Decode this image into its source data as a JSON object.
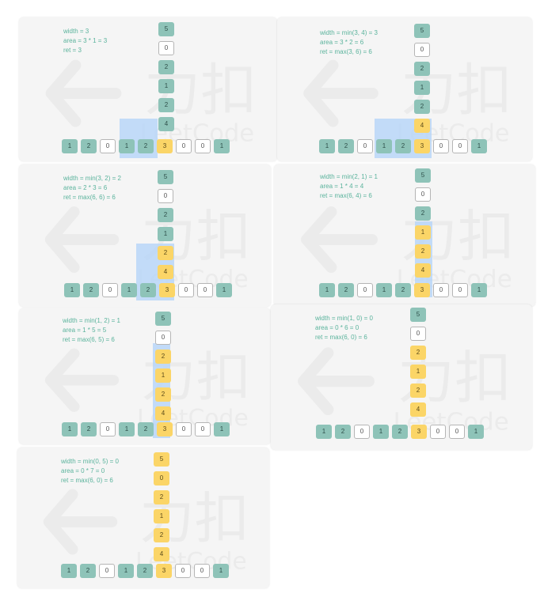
{
  "watermark": {
    "brand": "LeetCode",
    "chars": "力扣"
  },
  "colors": {
    "teal": "#8ec3b8",
    "yellow": "#fbd567",
    "white": "#ffffff",
    "highlight": "#b9d6f8",
    "text": "#5ab39c"
  },
  "bottom_row": [
    "1",
    "2",
    "0",
    "1",
    "2",
    "3",
    "0",
    "0",
    "1"
  ],
  "column": [
    "5",
    "0",
    "2",
    "1",
    "2",
    "4"
  ],
  "panels": [
    {
      "id": "p1",
      "lines": [
        "width = 3",
        "area = 3 * 1 = 3",
        "ret = 3"
      ],
      "col_types": [
        "teal",
        "white",
        "teal",
        "teal",
        "teal",
        "teal"
      ],
      "row_types": [
        "teal",
        "teal",
        "white",
        "teal",
        "teal",
        "yellow",
        "white",
        "white",
        "teal"
      ]
    },
    {
      "id": "p2",
      "lines": [
        "width = min(3, 4) = 3",
        "area = 3 * 2 = 6",
        "ret = max(3, 6) = 6"
      ],
      "col_types": [
        "teal",
        "white",
        "teal",
        "teal",
        "teal",
        "yellow"
      ],
      "row_types": [
        "teal",
        "teal",
        "white",
        "teal",
        "teal",
        "yellow",
        "white",
        "white",
        "teal"
      ]
    },
    {
      "id": "p3",
      "lines": [
        "width = min(3, 2) = 2",
        "area = 2 * 3 = 6",
        "ret = max(6, 6) = 6"
      ],
      "col_types": [
        "teal",
        "white",
        "teal",
        "teal",
        "yellow",
        "yellow"
      ],
      "row_types": [
        "teal",
        "teal",
        "white",
        "teal",
        "teal",
        "yellow",
        "white",
        "white",
        "teal"
      ]
    },
    {
      "id": "p4",
      "lines": [
        "width = min(2, 1) = 1",
        "area = 1 * 4 = 4",
        "ret = max(6, 4) = 6"
      ],
      "col_types": [
        "teal",
        "white",
        "teal",
        "yellow",
        "yellow",
        "yellow"
      ],
      "row_types": [
        "teal",
        "teal",
        "white",
        "teal",
        "teal",
        "yellow",
        "white",
        "white",
        "teal"
      ]
    },
    {
      "id": "p5",
      "lines": [
        "width = min(1, 2) = 1",
        "area = 1 * 5 = 5",
        "ret = max(6, 5) = 6"
      ],
      "col_types": [
        "teal",
        "white",
        "yellow",
        "yellow",
        "yellow",
        "yellow"
      ],
      "row_types": [
        "teal",
        "teal",
        "white",
        "teal",
        "teal",
        "yellow",
        "white",
        "white",
        "teal"
      ]
    },
    {
      "id": "p6",
      "lines": [
        "width = min(1, 0) = 0",
        "area = 0 * 6 = 0",
        "ret = max(6, 0) = 6"
      ],
      "col_types": [
        "teal",
        "white",
        "yellow",
        "yellow",
        "yellow",
        "yellow"
      ],
      "row_types": [
        "teal",
        "teal",
        "white",
        "teal",
        "teal",
        "yellow",
        "white",
        "white",
        "teal"
      ]
    },
    {
      "id": "p7",
      "lines": [
        "width = min(0, 5) = 0",
        "area = 0 * 7 = 0",
        "ret = max(6, 0) = 6"
      ],
      "col_types": [
        "yellow",
        "yellow",
        "yellow",
        "yellow",
        "yellow",
        "yellow"
      ],
      "row_types": [
        "teal",
        "teal",
        "white",
        "teal",
        "teal",
        "yellow",
        "white",
        "white",
        "teal"
      ]
    }
  ]
}
